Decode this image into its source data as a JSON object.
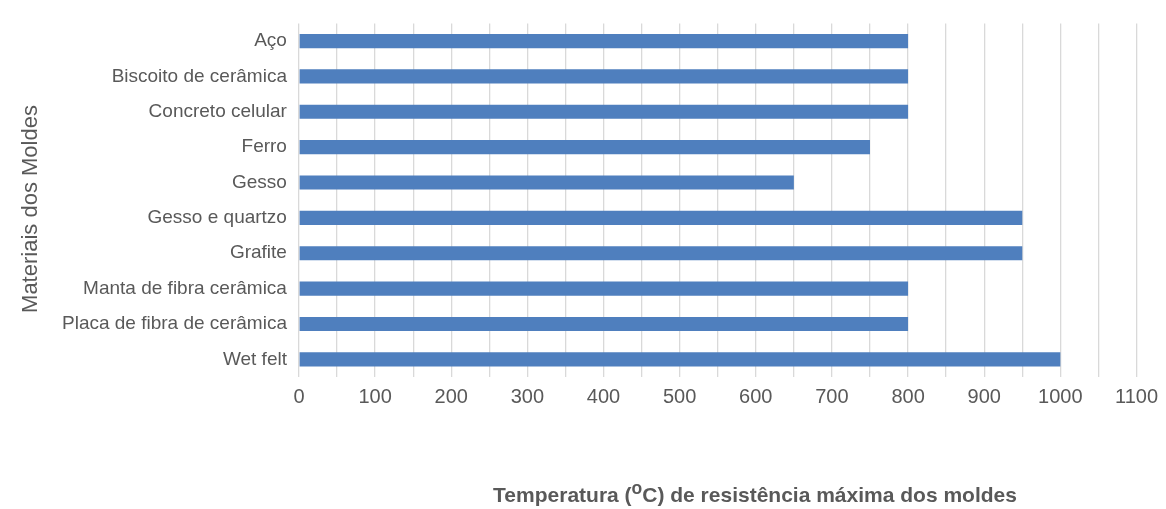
{
  "chart_data": {
    "type": "bar",
    "orientation": "horizontal",
    "xlabel": "Temperatura ($^{o}$C) de resistência máxima dos moldes",
    "ylabel": "Materiais dos Moldes",
    "categories": [
      "Aço",
      "Biscoito de cerâmica",
      "Concreto celular",
      "Ferro",
      "Gesso",
      "Gesso e quartzo",
      "Grafite",
      "Manta de fibra cerâmica",
      "Placa de fibra de cerâmica",
      "Wet felt"
    ],
    "values": [
      800,
      800,
      800,
      750,
      650,
      950,
      950,
      800,
      800,
      1000
    ],
    "color": "#4f7fbe",
    "xlim": [
      0,
      1100
    ],
    "xticks": [
      0,
      {
        "value": 50,
        "label": null
      },
      100,
      {
        "value": 150,
        "label": null
      },
      200,
      {
        "value": 250,
        "label": null
      },
      300,
      {
        "value": 350,
        "label": null
      },
      400,
      {
        "value": 450,
        "label": null
      },
      500,
      {
        "value": 550,
        "label": null
      },
      600,
      {
        "value": 650,
        "label": null
      },
      700,
      {
        "value": 750,
        "label": null
      },
      800,
      {
        "value": 850,
        "label": null
      },
      900,
      {
        "value": 950,
        "label": null
      },
      1000,
      {
        "value": 1050,
        "label": null
      },
      1100
    ],
    "grid": "x"
  }
}
